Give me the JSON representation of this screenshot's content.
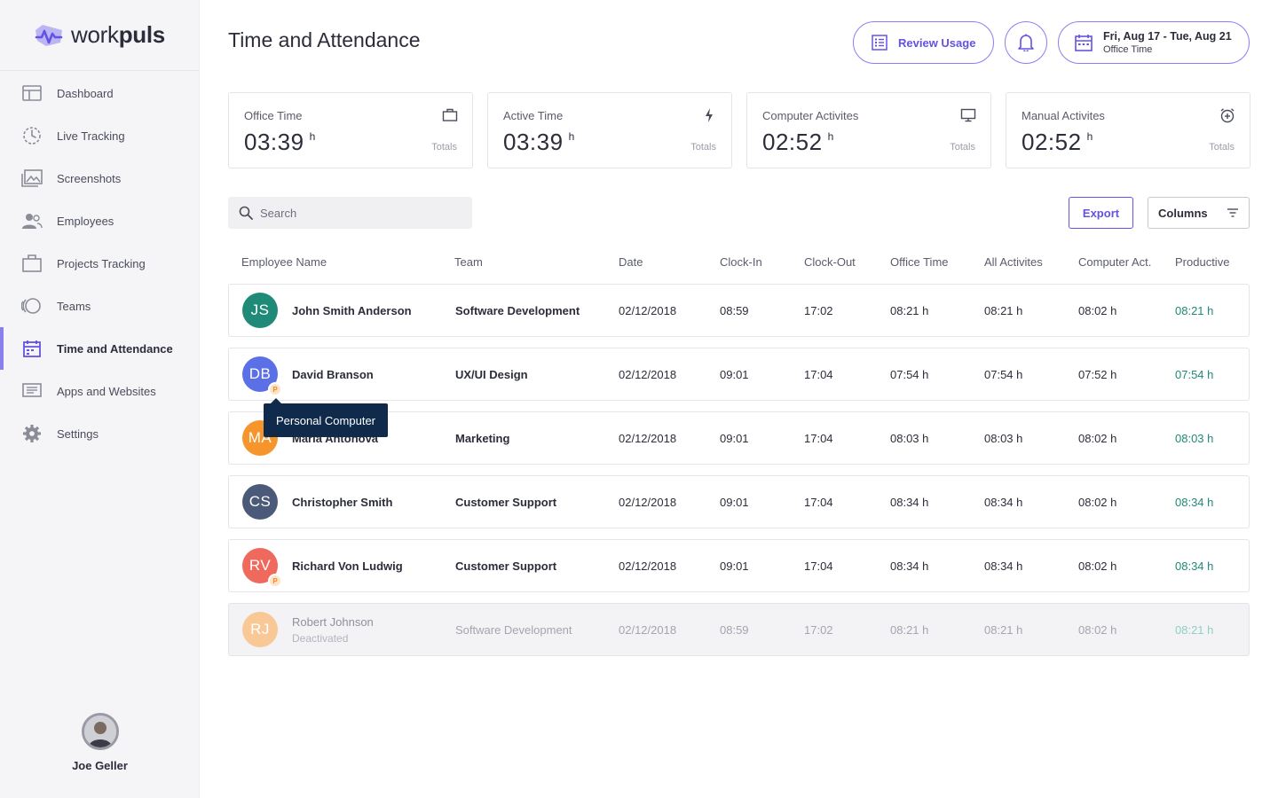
{
  "brand": {
    "name_light": "work",
    "name_bold": "puls",
    "accent": "#6352e6"
  },
  "sidebar": {
    "items": [
      {
        "label": "Dashboard",
        "icon": "dashboard-icon"
      },
      {
        "label": "Live Tracking",
        "icon": "live-tracking-icon"
      },
      {
        "label": "Screenshots",
        "icon": "screenshots-icon"
      },
      {
        "label": "Employees",
        "icon": "employees-icon"
      },
      {
        "label": "Projects Tracking",
        "icon": "briefcase-icon"
      },
      {
        "label": "Teams",
        "icon": "teams-icon"
      },
      {
        "label": "Time and Attendance",
        "icon": "calendar-icon",
        "active": true
      },
      {
        "label": "Apps and Websites",
        "icon": "apps-icon"
      },
      {
        "label": "Settings",
        "icon": "gear-icon"
      }
    ],
    "user": {
      "name": "Joe Geller"
    }
  },
  "header": {
    "title": "Time and Attendance",
    "review_label": "Review Usage",
    "date_range": "Fri, Aug 17 - Tue, Aug 21",
    "date_sub": "Office Time"
  },
  "cards": [
    {
      "title": "Office Time",
      "value": "03:39",
      "unit": "h",
      "totals": "Totals",
      "icon": "briefcase-icon"
    },
    {
      "title": "Active Time",
      "value": "03:39",
      "unit": "h",
      "totals": "Totals",
      "icon": "bolt-icon"
    },
    {
      "title": "Computer Activites",
      "value": "02:52",
      "unit": "h",
      "totals": "Totals",
      "icon": "monitor-icon"
    },
    {
      "title": "Manual Activites",
      "value": "02:52",
      "unit": "h",
      "totals": "Totals",
      "icon": "alarm-plus-icon"
    }
  ],
  "toolbar": {
    "search_placeholder": "Search",
    "export_label": "Export",
    "columns_label": "Columns"
  },
  "table": {
    "headers": [
      "Employee Name",
      "Team",
      "Date",
      "Clock-In",
      "Clock-Out",
      "Office Time",
      "All Activites",
      "Computer Act.",
      "Productive"
    ],
    "rows": [
      {
        "initials": "JS",
        "color": "#1f8a77",
        "name": "John Smith Anderson",
        "sub": "",
        "team": "Software Development",
        "date": "02/12/2018",
        "in": "08:59",
        "out": "17:02",
        "office": "08:21 h",
        "all": "08:21 h",
        "computer": "08:02 h",
        "productive": "08:21 h",
        "badge": ""
      },
      {
        "initials": "DB",
        "color": "#5b6fe6",
        "name": "David Branson",
        "sub": "",
        "team": "UX/UI Design",
        "date": "02/12/2018",
        "in": "09:01",
        "out": "17:04",
        "office": "07:54 h",
        "all": "07:54 h",
        "computer": "07:52 h",
        "productive": "07:54 h",
        "badge": "P"
      },
      {
        "initials": "MA",
        "color": "#f5952b",
        "name": "Maria Antonova",
        "sub": "",
        "team": "Marketing",
        "date": "02/12/2018",
        "in": "09:01",
        "out": "17:04",
        "office": "08:03 h",
        "all": "08:03 h",
        "computer": "08:02 h",
        "productive": "08:03 h",
        "badge": ""
      },
      {
        "initials": "CS",
        "color": "#4c5a7a",
        "name": "Christopher Smith",
        "sub": "",
        "team": "Customer Support",
        "date": "02/12/2018",
        "in": "09:01",
        "out": "17:04",
        "office": "08:34 h",
        "all": "08:34 h",
        "computer": "08:02 h",
        "productive": "08:34 h",
        "badge": ""
      },
      {
        "initials": "RV",
        "color": "#ef6a5d",
        "name": "Richard Von Ludwig",
        "sub": "",
        "team": "Customer Support",
        "date": "02/12/2018",
        "in": "09:01",
        "out": "17:04",
        "office": "08:34 h",
        "all": "08:34 h",
        "computer": "08:02 h",
        "productive": "08:34 h",
        "badge": "P"
      },
      {
        "initials": "RJ",
        "color": "#f8c897",
        "name": "Robert Johnson",
        "sub": "Deactivated",
        "team": "Software Development",
        "date": "02/12/2018",
        "in": "08:59",
        "out": "17:02",
        "office": "08:21 h",
        "all": "08:21 h",
        "computer": "08:02 h",
        "productive": "08:21 h",
        "badge": "",
        "deactivated": true
      }
    ]
  },
  "tooltip": {
    "text": "Personal Computer"
  }
}
